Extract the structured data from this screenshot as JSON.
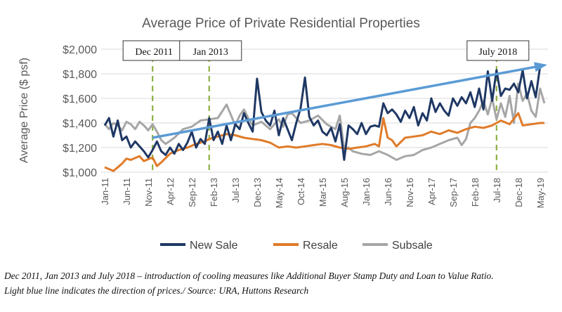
{
  "chart_data": {
    "type": "line",
    "title": "Average Price of Private Residential Properties",
    "ylabel": "Average Price ($ psf)",
    "xlabel": "",
    "ylim": [
      1000,
      2000
    ],
    "y_ticks": [
      1000,
      1200,
      1400,
      1600,
      1800,
      2000
    ],
    "y_tick_labels": [
      "$1,000",
      "$1,200",
      "$1,400",
      "$1,600",
      "$1,800",
      "$2,000"
    ],
    "x_start": "2011-01",
    "x_end": "2019-06",
    "x_tick_labels": [
      "Jan-11",
      "Jun-11",
      "Nov-11",
      "Apr-12",
      "Sep-12",
      "Feb-13",
      "Jul-13",
      "Dec-13",
      "May-14",
      "Oct-14",
      "Mar-15",
      "Aug-15",
      "Jan-16",
      "Jun-16",
      "Nov-16",
      "Apr-17",
      "Sep-17",
      "Feb-18",
      "Jul-18",
      "Dec-18",
      "May-19"
    ],
    "grid": "horizontal",
    "legend_position": "bottom",
    "series": [
      {
        "name": "New Sale",
        "color": "#1f3864",
        "x": [
          "2011-01",
          "2011-02",
          "2011-03",
          "2011-04",
          "2011-05",
          "2011-06",
          "2011-07",
          "2011-08",
          "2011-09",
          "2011-10",
          "2011-11",
          "2011-12",
          "2012-01",
          "2012-02",
          "2012-03",
          "2012-04",
          "2012-05",
          "2012-06",
          "2012-07",
          "2012-08",
          "2012-09",
          "2012-10",
          "2012-11",
          "2012-12",
          "2013-01",
          "2013-02",
          "2013-03",
          "2013-04",
          "2013-05",
          "2013-06",
          "2013-07",
          "2013-08",
          "2013-09",
          "2013-10",
          "2013-11",
          "2013-12",
          "2014-01",
          "2014-02",
          "2014-03",
          "2014-04",
          "2014-05",
          "2014-06",
          "2014-07",
          "2014-08",
          "2014-09",
          "2014-10",
          "2014-11",
          "2014-12",
          "2015-01",
          "2015-02",
          "2015-03",
          "2015-04",
          "2015-05",
          "2015-06",
          "2015-07",
          "2015-08",
          "2015-09",
          "2015-10",
          "2015-11",
          "2015-12",
          "2016-01",
          "2016-02",
          "2016-03",
          "2016-04",
          "2016-05",
          "2016-06",
          "2016-07",
          "2016-08",
          "2016-09",
          "2016-10",
          "2016-11",
          "2016-12",
          "2017-01",
          "2017-02",
          "2017-03",
          "2017-04",
          "2017-05",
          "2017-06",
          "2017-07",
          "2017-08",
          "2017-09",
          "2017-10",
          "2017-11",
          "2017-12",
          "2018-01",
          "2018-02",
          "2018-03",
          "2018-04",
          "2018-05",
          "2018-06",
          "2018-07",
          "2018-08",
          "2018-09",
          "2018-10",
          "2018-11",
          "2018-12",
          "2019-01",
          "2019-02",
          "2019-03",
          "2019-04",
          "2019-05",
          "2019-06"
        ],
        "values": [
          1380,
          1440,
          1290,
          1420,
          1260,
          1290,
          1200,
          1250,
          1210,
          1170,
          1120,
          1180,
          1250,
          1170,
          1140,
          1200,
          1150,
          1230,
          1180,
          1240,
          1330,
          1200,
          1270,
          1230,
          1440,
          1260,
          1330,
          1230,
          1380,
          1260,
          1390,
          1350,
          1480,
          1400,
          1330,
          1760,
          1490,
          1420,
          1380,
          1500,
          1300,
          1440,
          1350,
          1260,
          1400,
          1520,
          1770,
          1450,
          1380,
          1420,
          1330,
          1300,
          1360,
          1250,
          1390,
          1100,
          1380,
          1350,
          1310,
          1400,
          1310,
          1370,
          1380,
          1370,
          1560,
          1480,
          1510,
          1470,
          1410,
          1500,
          1440,
          1530,
          1380,
          1480,
          1420,
          1600,
          1490,
          1560,
          1500,
          1460,
          1600,
          1540,
          1610,
          1560,
          1650,
          1530,
          1680,
          1510,
          1820,
          1580,
          1830,
          1620,
          1680,
          1670,
          1720,
          1650,
          1830,
          1600,
          1740,
          1610,
          1860,
          1870
        ]
      },
      {
        "name": "Resale",
        "color": "#e07b29",
        "x": [
          "2011-01",
          "2011-03",
          "2011-05",
          "2011-06",
          "2011-07",
          "2011-09",
          "2011-10",
          "2011-12",
          "2012-01",
          "2012-02",
          "2012-04",
          "2012-06",
          "2012-08",
          "2012-10",
          "2012-12",
          "2013-01",
          "2013-03",
          "2013-05",
          "2013-07",
          "2013-09",
          "2013-11",
          "2014-01",
          "2014-03",
          "2014-05",
          "2014-07",
          "2014-09",
          "2014-11",
          "2015-01",
          "2015-03",
          "2015-05",
          "2015-07",
          "2015-09",
          "2015-11",
          "2016-01",
          "2016-03",
          "2016-04",
          "2016-05",
          "2016-06",
          "2016-07",
          "2016-08",
          "2016-10",
          "2016-12",
          "2017-02",
          "2017-04",
          "2017-06",
          "2017-08",
          "2017-10",
          "2017-12",
          "2018-02",
          "2018-04",
          "2018-06",
          "2018-08",
          "2018-10",
          "2018-12",
          "2019-01",
          "2019-03",
          "2019-05",
          "2019-06"
        ],
        "values": [
          1040,
          1010,
          1070,
          1110,
          1100,
          1130,
          1090,
          1120,
          1050,
          1080,
          1150,
          1180,
          1200,
          1230,
          1250,
          1270,
          1290,
          1310,
          1300,
          1280,
          1270,
          1260,
          1240,
          1200,
          1210,
          1200,
          1210,
          1220,
          1230,
          1220,
          1200,
          1190,
          1200,
          1210,
          1230,
          1210,
          1440,
          1280,
          1260,
          1210,
          1280,
          1290,
          1300,
          1330,
          1310,
          1340,
          1320,
          1350,
          1370,
          1360,
          1380,
          1420,
          1390,
          1480,
          1380,
          1390,
          1400,
          1400
        ]
      },
      {
        "name": "Subsale",
        "color": "#a6a6a6",
        "x": [
          "2011-01",
          "2011-02",
          "2011-03",
          "2011-04",
          "2011-05",
          "2011-06",
          "2011-07",
          "2011-08",
          "2011-09",
          "2011-10",
          "2011-11",
          "2011-12",
          "2012-01",
          "2012-02",
          "2012-03",
          "2012-05",
          "2012-07",
          "2012-09",
          "2012-11",
          "2013-01",
          "2013-03",
          "2013-05",
          "2013-07",
          "2013-08",
          "2013-09",
          "2013-10",
          "2013-11",
          "2014-01",
          "2014-03",
          "2014-05",
          "2014-06",
          "2014-07",
          "2014-08",
          "2014-10",
          "2014-12",
          "2015-02",
          "2015-04",
          "2015-06",
          "2015-07",
          "2015-08",
          "2015-09",
          "2015-10",
          "2015-12",
          "2016-02",
          "2016-04",
          "2016-06",
          "2016-08",
          "2016-10",
          "2016-12",
          "2017-02",
          "2017-04",
          "2017-06",
          "2017-08",
          "2017-10",
          "2017-11",
          "2017-12",
          "2018-01",
          "2018-02",
          "2018-03",
          "2018-04",
          "2018-05",
          "2018-06",
          "2018-07",
          "2018-08",
          "2018-09",
          "2018-10",
          "2018-11",
          "2018-12",
          "2019-01",
          "2019-02",
          "2019-03",
          "2019-04",
          "2019-05",
          "2019-06"
        ],
        "values": [
          1390,
          1350,
          1400,
          1380,
          1340,
          1410,
          1390,
          1350,
          1410,
          1380,
          1340,
          1390,
          1330,
          1260,
          1230,
          1280,
          1350,
          1370,
          1420,
          1430,
          1440,
          1550,
          1380,
          1460,
          1510,
          1440,
          1380,
          1410,
          1350,
          1430,
          1370,
          1470,
          1480,
          1400,
          1420,
          1460,
          1390,
          1350,
          1460,
          1190,
          1200,
          1170,
          1150,
          1140,
          1170,
          1140,
          1100,
          1130,
          1140,
          1180,
          1200,
          1230,
          1260,
          1280,
          1220,
          1270,
          1400,
          1440,
          1500,
          1580,
          1470,
          1600,
          1430,
          1560,
          1450,
          1620,
          1400,
          1720,
          1580,
          1640,
          1500,
          1450,
          1680,
          1560
        ]
      },
      {
        "name": "",
        "color": "#5b9bd5",
        "x": [
          "2011-12",
          "2019-06"
        ],
        "values": [
          1280,
          1870
        ]
      }
    ],
    "annotations": [
      {
        "label": "Dec 2011",
        "x": "2011-12"
      },
      {
        "label": "Jan 2013",
        "x": "2013-01"
      },
      {
        "label": "July 2018",
        "x": "2018-07"
      }
    ]
  },
  "footnote": {
    "line1": "Dec 2011, Jan 2013 and July 2018 – introduction of cooling measures like Additional Buyer Stamp Duty and Loan to Value Ratio.",
    "line2": "Light blue line indicates the direction of prices./   Source: URA, Huttons Research"
  }
}
